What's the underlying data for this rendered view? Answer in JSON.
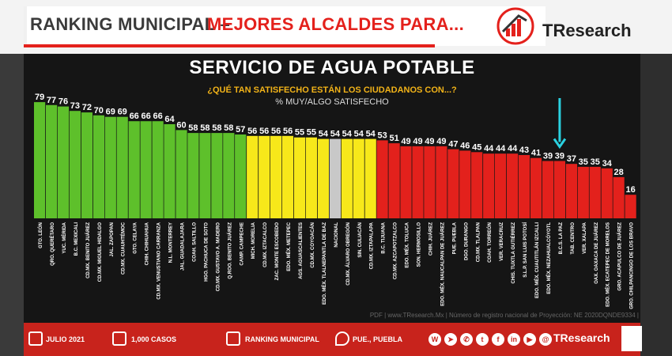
{
  "header": {
    "title_left": "RANKING MUNICIPAL –",
    "title_right": "MEJORES ALCALDES PARA...",
    "logo_text": "TResearch"
  },
  "chart_data": {
    "type": "bar",
    "title": "SERVICIO DE AGUA POTABLE",
    "subtitle": "¿QUÉ TAN SATISFECHO ESTÁN LOS CIUDADANOS CON...?",
    "ylabel": "% MUY/ALGO SATISFECHO",
    "ylim": [
      0,
      80
    ],
    "categories": [
      "GTO. LEÓN",
      "QRO. QUERÉTARO",
      "YUC. MÉRIDA",
      "B.C. MEXICALI",
      "CD.MX. BENITO JUÁREZ",
      "CD.MX. MIGUEL HIDALGO",
      "JAL. ZAPOPAN",
      "CD.MX. CUAUHTÉMOC",
      "GTO. CELAYA",
      "CHIH. CHIHUAHUA",
      "CD.MX. VENUSTIANO CARRANZA",
      "N.L. MONTERREY",
      "JAL. GUADALAJARA",
      "COAH. SALTILLO",
      "HGO. PACHUCA DE SOTO",
      "CD.MX. GUSTAVO A. MADERO",
      "Q.ROO. BENITO JUÁREZ",
      "CAMP. CAMPECHE",
      "MICH. MORELIA",
      "CD.MX. IZTACALCO",
      "ZAC. MONTE ESCOBEDO",
      "EDO. MÉX. METEPEC",
      "AGS. AGUASCALIENTES",
      "CD.MX. COYOACÁN",
      "EDO. MÉX. TLALNEPANTLA DE BAZ",
      "NACIONAL",
      "CD.MX. ÁLVARO OBREGÓN",
      "SIN. CULIACÁN",
      "CD.MX. IZTAPALAPA",
      "B.C. TIJUANA",
      "CD.MX. AZCAPOTZALCO",
      "EDO. MÉX. TOLUCA",
      "SON. HERMOSILLO",
      "CHIH. JUÁREZ",
      "EDO. MÉX. NAUCALPAN DE JUÁREZ",
      "PUE. PUEBLA",
      "DGO. DURANGO",
      "CD.MX. TLALPAN",
      "COAH. TORREÓN",
      "VER. VERACRUZ",
      "CHIS. TUXTLA GUTIÉRREZ",
      "S.L.P. SAN LUIS POTOSÍ",
      "EDO. MÉX. CUAUTITLÁN IZCALLI",
      "EDO. MÉX. NEZAHUALCÓYOTL",
      "B.C.S. LA PAZ",
      "TAB. CENTRO",
      "VER. XALAPA",
      "OAX. OAXACA DE JUÁREZ",
      "EDO. MÉX. ECATEPEC DE MORELOS",
      "GRO. ACAPULCO DE JUÁREZ",
      "GRO. CHILPANCINGO DE LOS BRAVO"
    ],
    "values": [
      79,
      77,
      76,
      73,
      72,
      70,
      69,
      69,
      66,
      66,
      66,
      64,
      60,
      58,
      58,
      58,
      58,
      57,
      56,
      56,
      56,
      56,
      55,
      55,
      54,
      54,
      54,
      54,
      54,
      53,
      51,
      49,
      49,
      49,
      49,
      47,
      46,
      45,
      44,
      44,
      44,
      43,
      41,
      39,
      39,
      37,
      35,
      35,
      34,
      28,
      16
    ],
    "colors": {
      "green": "#5ec02b",
      "yellow": "#f7e81a",
      "gray": "#c8c8c8",
      "red": "#e3211c",
      "highlight_arrow": "#2ad1e0"
    },
    "highlight": "B.C.S. LA PAZ",
    "grid": false,
    "legend": "none"
  },
  "footer": {
    "date": "JULIO 2021",
    "cases": "1,000 CASOS",
    "ranking": "RANKING MUNICIPAL",
    "location": "PUE., PUEBLA",
    "logo_text": "TResearch",
    "pdf_note": "PDF | www.TResearch.Mx | Número de registro nacional de Proyección: NE 2020DQNDE9334 |"
  }
}
